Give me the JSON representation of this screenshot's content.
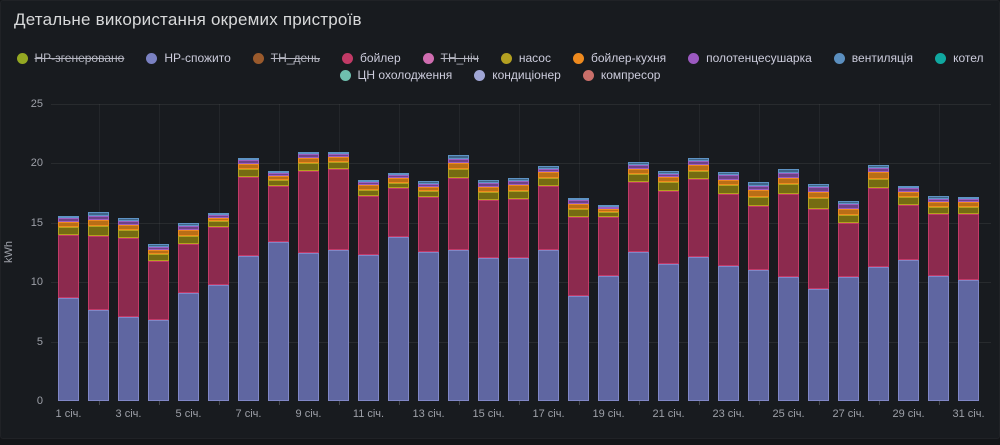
{
  "header": {
    "title": "Детальне використання окремих пристроїв"
  },
  "legend": {
    "rows": [
      [
        {
          "label": "НР-згенеровано",
          "color": "#94a822",
          "hidden": true
        },
        {
          "label": "НР-спожито",
          "color": "#7a81c2",
          "hidden": false
        },
        {
          "label": "ТН_день",
          "color": "#9a5a2c",
          "hidden": true
        },
        {
          "label": "бойлер",
          "color": "#c13a66",
          "hidden": false
        },
        {
          "label": "ТН_ніч",
          "color": "#cf6db0",
          "hidden": true
        },
        {
          "label": "насос",
          "color": "#b3a021",
          "hidden": false
        },
        {
          "label": "бойлер-кухня",
          "color": "#ee8a1e",
          "hidden": false
        },
        {
          "label": "полотенцесушарка",
          "color": "#9b59c0",
          "hidden": false
        },
        {
          "label": "вентиляція",
          "color": "#5b8fbf",
          "hidden": false
        },
        {
          "label": "котел",
          "color": "#10a8a0",
          "hidden": false
        }
      ],
      [
        {
          "label": "ЦН охолодження",
          "color": "#6fbfae",
          "hidden": false
        },
        {
          "label": "кондиціонер",
          "color": "#a0a6d5",
          "hidden": false
        },
        {
          "label": "компресор",
          "color": "#c96f6a",
          "hidden": false
        }
      ]
    ]
  },
  "chart_data": {
    "type": "bar",
    "stacked": true,
    "ylabel": "kWh",
    "ylim": [
      0,
      25
    ],
    "yticks": [
      0,
      5,
      10,
      15,
      20,
      25
    ],
    "grid": true,
    "days": [
      1,
      2,
      3,
      4,
      5,
      6,
      7,
      8,
      9,
      10,
      11,
      12,
      13,
      14,
      15,
      16,
      17,
      18,
      19,
      20,
      21,
      22,
      23,
      24,
      25,
      26,
      27,
      28,
      29,
      30,
      31
    ],
    "x_tick_labels": [
      "1 січ.",
      "3 січ.",
      "5 січ.",
      "7 січ.",
      "9 січ.",
      "11 січ.",
      "13 січ.",
      "15 січ.",
      "17 січ.",
      "19 січ.",
      "21 січ.",
      "23 січ.",
      "25 січ.",
      "27 січ.",
      "29 січ.",
      "31 січ."
    ],
    "x_tick_days": [
      1,
      3,
      5,
      7,
      9,
      11,
      13,
      15,
      17,
      19,
      21,
      23,
      25,
      27,
      29,
      31
    ],
    "hidden_series": [
      "НР-згенеровано",
      "ТН_день",
      "ТН_ніч"
    ],
    "series": [
      {
        "name": "НР-спожито",
        "color": "#8087c6",
        "fill": "#5f66a1",
        "values": [
          8.7,
          7.7,
          7.1,
          6.8,
          9.1,
          9.8,
          12.2,
          13.4,
          12.5,
          12.7,
          12.3,
          13.8,
          12.5,
          12.7,
          12.0,
          12.0,
          12.7,
          8.8,
          10.5,
          12.5,
          11.5,
          12.1,
          11.4,
          11.0,
          10.4,
          9.4,
          10.4,
          11.3,
          11.9,
          10.5,
          10.2
        ]
      },
      {
        "name": "бойлер",
        "color": "#c23a68",
        "fill": "#8c2a4e",
        "values": [
          5.3,
          6.2,
          6.6,
          5.0,
          4.1,
          4.9,
          6.7,
          4.7,
          6.9,
          6.8,
          5.0,
          4.1,
          4.7,
          6.1,
          4.9,
          5.0,
          5.4,
          6.7,
          5.0,
          5.9,
          6.2,
          6.6,
          6.0,
          5.4,
          7.0,
          6.8,
          4.6,
          6.6,
          4.6,
          5.25,
          5.55
        ]
      },
      {
        "name": "насос",
        "color": "#b3a21e",
        "fill": "#756b12",
        "values": [
          0.65,
          0.8,
          0.7,
          0.55,
          0.7,
          0.45,
          0.65,
          0.5,
          0.65,
          0.6,
          0.5,
          0.5,
          0.5,
          0.75,
          0.7,
          0.7,
          0.7,
          0.65,
          0.4,
          0.7,
          0.7,
          0.7,
          0.75,
          0.8,
          0.85,
          0.85,
          0.7,
          0.8,
          0.65,
          0.6,
          0.6
        ]
      },
      {
        "name": "бойлер-кухня",
        "color": "#ee8a1e",
        "fill": "#b96e16",
        "values": [
          0.45,
          0.55,
          0.45,
          0.4,
          0.5,
          0.3,
          0.45,
          0.35,
          0.45,
          0.4,
          0.35,
          0.35,
          0.35,
          0.5,
          0.45,
          0.5,
          0.45,
          0.45,
          0.25,
          0.45,
          0.45,
          0.5,
          0.5,
          0.55,
          0.55,
          0.55,
          0.5,
          0.55,
          0.45,
          0.4,
          0.4
        ]
      },
      {
        "name": "полотенцесушарка",
        "color": "#9d5fc0",
        "fill": "#6e4287",
        "values": [
          0.3,
          0.35,
          0.3,
          0.25,
          0.35,
          0.2,
          0.3,
          0.25,
          0.3,
          0.3,
          0.25,
          0.25,
          0.25,
          0.35,
          0.3,
          0.35,
          0.3,
          0.3,
          0.2,
          0.3,
          0.3,
          0.35,
          0.35,
          0.35,
          0.4,
          0.4,
          0.35,
          0.35,
          0.3,
          0.3,
          0.25
        ]
      },
      {
        "name": "вентиляція",
        "color": "#5e93c4",
        "fill": "#3f6587",
        "values": [
          0.2,
          0.3,
          0.25,
          0.2,
          0.25,
          0.15,
          0.2,
          0.2,
          0.2,
          0.2,
          0.2,
          0.2,
          0.2,
          0.3,
          0.25,
          0.25,
          0.25,
          0.2,
          0.15,
          0.25,
          0.25,
          0.25,
          0.3,
          0.3,
          0.3,
          0.3,
          0.25,
          0.3,
          0.2,
          0.25,
          0.2
        ]
      }
    ]
  }
}
